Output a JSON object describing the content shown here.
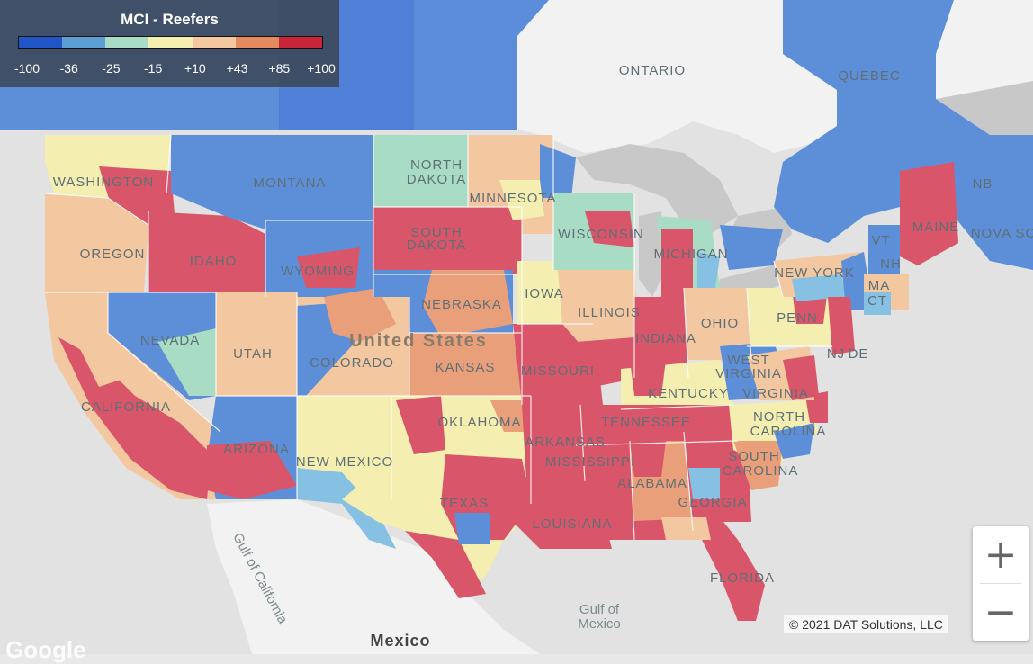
{
  "legend": {
    "title": "MCI - Reefers",
    "colors": [
      "#2156c8",
      "#5b9fd4",
      "#a9dcc4",
      "#f4efb0",
      "#f3c7a0",
      "#e38a5e",
      "#c8243a"
    ],
    "ticks": [
      "-100",
      "-36",
      "-25",
      "-15",
      "+10",
      "+43",
      "+85",
      "+100"
    ]
  },
  "map": {
    "labels": {
      "washington": "WASHINGTON",
      "montana": "MONTANA",
      "north_dakota_1": "NORTH",
      "north_dakota_2": "DAKOTA",
      "minnesota": "MINNESOTA",
      "south_dakota_1": "SOUTH",
      "south_dakota_2": "DAKOTA",
      "oregon": "OREGON",
      "idaho": "IDAHO",
      "wyoming": "WYOMING",
      "wisconsin": "WISCONSIN",
      "michigan": "MICHIGAN",
      "iowa": "IOWA",
      "nebraska": "NEBRASKA",
      "nevada": "NEVADA",
      "utah": "UTAH",
      "colorado": "COLORADO",
      "kansas": "KANSAS",
      "illinois": "ILLINOIS",
      "indiana": "INDIANA",
      "ohio": "OHIO",
      "penn": "PENN",
      "new_york": "NEW YORK",
      "missouri": "MISSOURI",
      "kentucky": "KENTUCKY",
      "west_virginia_1": "WEST",
      "west_virginia_2": "VIRGINIA",
      "virginia": "VIRGINIA",
      "california": "CALIFORNIA",
      "arizona": "ARIZONA",
      "new_mexico": "NEW MEXICO",
      "oklahoma": "OKLAHOMA",
      "tennessee": "TENNESSEE",
      "arkansas": "ARKANSAS",
      "north_carolina_1": "NORTH",
      "north_carolina_2": "CAROLINA",
      "south_carolina_1": "SOUTH",
      "south_carolina_2": "CAROLINA",
      "mississippi": "MISSISSIPPI",
      "alabama": "ALABAMA",
      "georgia": "GEORGIA",
      "texas": "TEXAS",
      "louisiana": "LOUISIANA",
      "florida": "FLORIDA",
      "maine": "MAINE",
      "vt": "VT",
      "nh": "NH",
      "ma": "MA",
      "ct": "CT",
      "nj": "NJ",
      "de": "DE",
      "ontario": "ONTARIO",
      "quebec": "QUEBEC",
      "nb": "NB",
      "nova_scotia": "NOVA SC",
      "united_states": "United States",
      "gulf_of_mexico_1": "Gulf of",
      "gulf_of_mexico_2": "Mexico",
      "gulf_of_california": "Gulf of California",
      "mexico": "Mexico"
    }
  },
  "controls": {
    "zoom_in": "+",
    "zoom_out": "−"
  },
  "attribution": {
    "copyright": "© 2021 DAT Solutions, LLC",
    "google": "Google"
  }
}
